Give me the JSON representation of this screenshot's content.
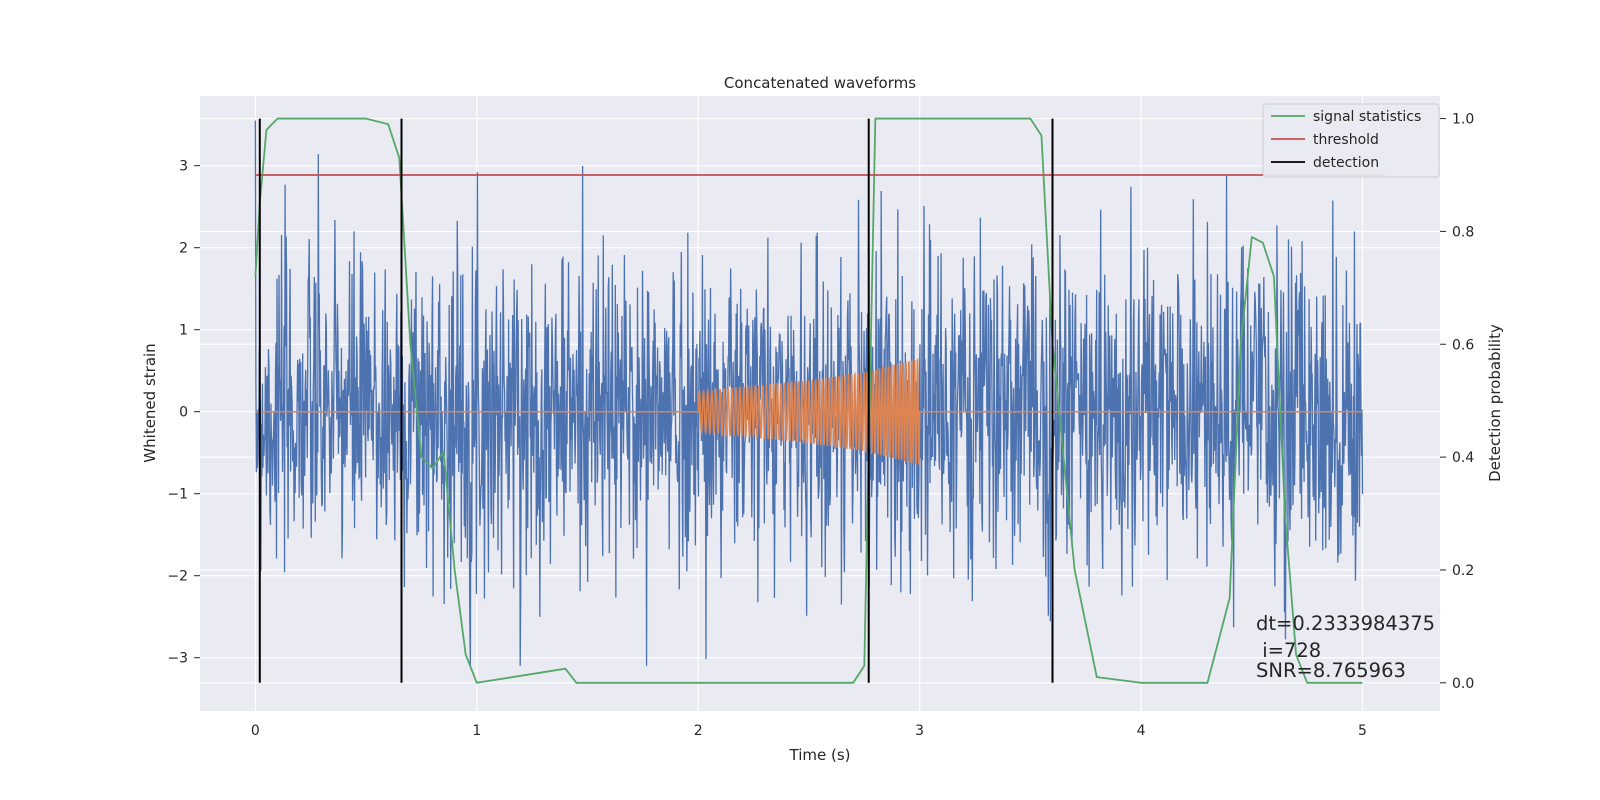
{
  "chart_data": {
    "type": "line",
    "title": "Concatenated waveforms",
    "xlabel": "Time (s)",
    "ylabel_left": "Whitened strain",
    "ylabel_right": "Detection probability",
    "xlim": [
      -0.25,
      5.35
    ],
    "ylim_left": [
      -3.65,
      3.85
    ],
    "ylim_right": [
      -0.05,
      1.04
    ],
    "x_ticks": [
      0,
      1,
      2,
      3,
      4,
      5
    ],
    "x_tick_labels": [
      "0",
      "1",
      "2",
      "3",
      "4",
      "5"
    ],
    "y_left_ticks": [
      -3,
      -2,
      -1,
      0,
      1,
      2,
      3
    ],
    "y_left_tick_labels": [
      "−3",
      "−2",
      "−1",
      "0",
      "1",
      "2",
      "3"
    ],
    "y_right_ticks": [
      0.0,
      0.2,
      0.4,
      0.6,
      0.8,
      1.0
    ],
    "y_right_tick_labels": [
      "0.0",
      "0.2",
      "0.4",
      "0.6",
      "0.8",
      "1.0"
    ],
    "grid": true,
    "legend_position": "top-right",
    "series": [
      {
        "name": "",
        "axis": "left",
        "color": "#4c72b0",
        "kind": "noise",
        "x_range": [
          0,
          5
        ],
        "samples": 2200,
        "std": 0.95,
        "clip": [
          -3.1,
          3.55
        ]
      },
      {
        "name": "",
        "axis": "left",
        "color": "#dd8452",
        "kind": "chirp",
        "x": [
          0,
          2,
          2.5,
          2.75,
          3,
          5
        ],
        "amplitude": [
          0,
          0.25,
          0.38,
          0.48,
          0.65,
          0
        ],
        "chirp_start": 2.0,
        "chirp_end": 3.0,
        "cycles": 65
      },
      {
        "name": "signal statistics",
        "axis": "right",
        "color": "#55a868",
        "x": [
          0.0,
          0.02,
          0.05,
          0.1,
          0.5,
          0.6,
          0.65,
          0.7,
          0.75,
          0.8,
          0.85,
          0.9,
          0.95,
          1.0,
          1.4,
          1.42,
          1.45,
          2.7,
          2.75,
          2.8,
          3.5,
          3.55,
          3.6,
          3.7,
          3.8,
          4.0,
          4.3,
          4.4,
          4.45,
          4.5,
          4.55,
          4.6,
          4.65,
          4.7,
          4.75,
          5.0
        ],
        "values": [
          0.72,
          0.85,
          0.98,
          1.0,
          1.0,
          0.99,
          0.93,
          0.6,
          0.4,
          0.38,
          0.41,
          0.2,
          0.05,
          0.0,
          0.025,
          0.015,
          0.0,
          0.0,
          0.03,
          1.0,
          1.0,
          0.97,
          0.6,
          0.2,
          0.01,
          0.0,
          0.0,
          0.15,
          0.6,
          0.79,
          0.78,
          0.72,
          0.3,
          0.05,
          0.0,
          0.0
        ]
      },
      {
        "name": "threshold",
        "axis": "right",
        "color": "#c44e52",
        "x": [
          0,
          5.1
        ],
        "values": [
          0.9,
          0.9
        ]
      },
      {
        "name": "detection",
        "axis": "right",
        "color": "#000000",
        "kind": "vlines",
        "x": [
          0.02,
          0.66,
          2.77,
          3.6
        ],
        "ymin": 0.0,
        "ymax": 1.0
      }
    ],
    "annotation": {
      "lines": [
        "dt=0.2333984375",
        " i=728",
        "SNR=8.765963"
      ]
    }
  }
}
